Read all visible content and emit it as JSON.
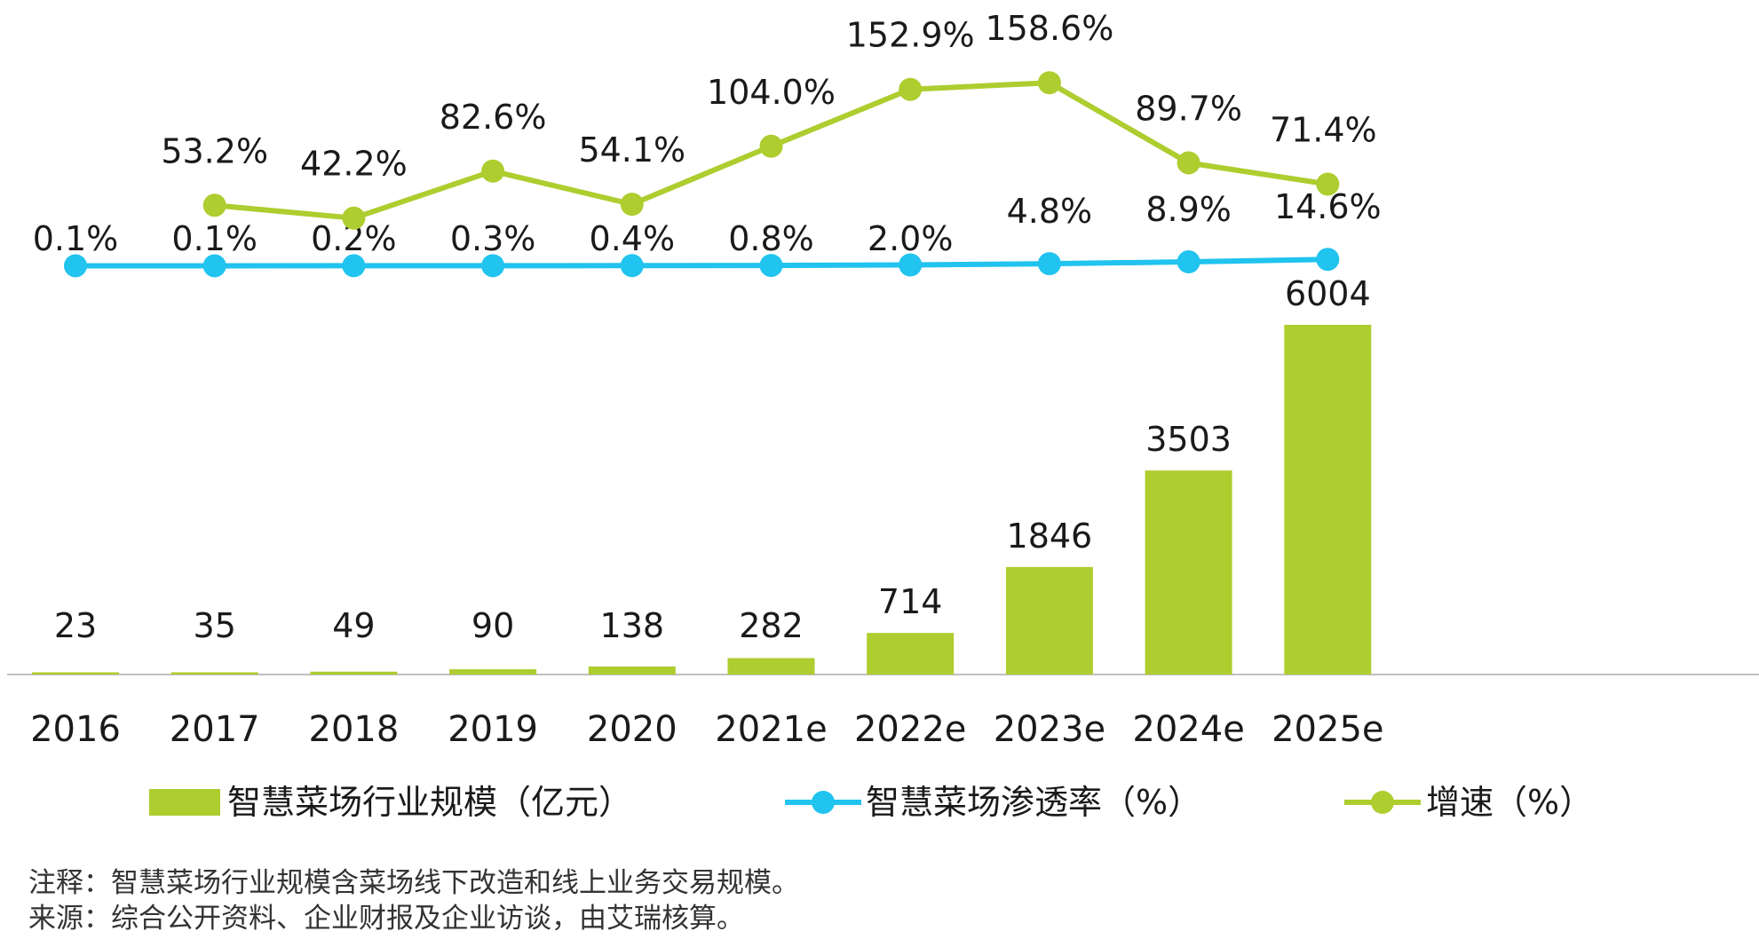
{
  "chart_data": {
    "type": "bar",
    "categories": [
      "2016",
      "2017",
      "2018",
      "2019",
      "2020",
      "2021e",
      "2022e",
      "2023e",
      "2024e",
      "2025e"
    ],
    "series": [
      {
        "name": "智慧菜场行业规模（亿元）",
        "type": "bar",
        "values": [
          23,
          35,
          49,
          90,
          138,
          282,
          714,
          1846,
          3503,
          6004
        ],
        "labels": [
          "23",
          "35",
          "49",
          "90",
          "138",
          "282",
          "714",
          "1846",
          "3503",
          "6004"
        ]
      },
      {
        "name": "智慧菜场渗透率（%）",
        "type": "line",
        "values": [
          0.1,
          0.1,
          0.2,
          0.3,
          0.4,
          0.8,
          2.0,
          4.8,
          8.9,
          14.6
        ],
        "labels": [
          "0.1%",
          "0.1%",
          "0.2%",
          "0.3%",
          "0.4%",
          "0.8%",
          "2.0%",
          "4.8%",
          "8.9%",
          "14.6%"
        ]
      },
      {
        "name": "增速（%）",
        "type": "line",
        "values": [
          null,
          53.2,
          42.2,
          82.6,
          54.1,
          104.0,
          152.9,
          158.6,
          89.7,
          71.4
        ],
        "labels": [
          "",
          "53.2%",
          "42.2%",
          "82.6%",
          "54.1%",
          "104.0%",
          "152.9%",
          "158.6%",
          "89.7%",
          "71.4%"
        ]
      }
    ],
    "colors": {
      "bar": "#aecd2f",
      "penetration": "#21c3ef",
      "growth": "#aecd2f",
      "axis": "#bfbfbf"
    },
    "legend_position": "bottom",
    "grid": false
  },
  "notes": {
    "note": "注释：智慧菜场行业规模含菜场线下改造和线上业务交易规模。",
    "source": "来源：综合公开资料、企业财报及企业访谈，由艾瑞核算。"
  }
}
